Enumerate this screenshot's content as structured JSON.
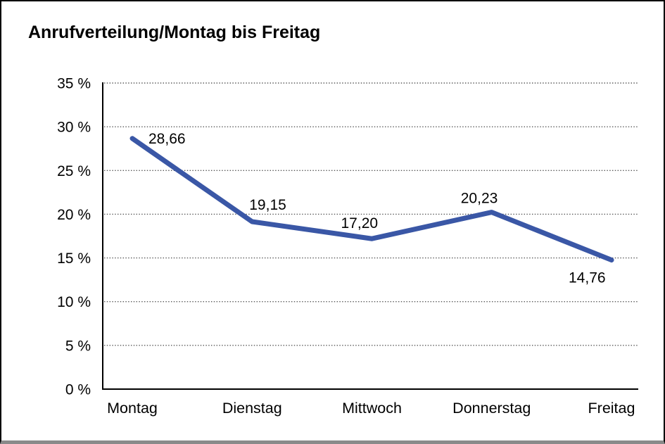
{
  "chart_data": {
    "type": "line",
    "title": "Anrufverteilung/Montag bis Freitag",
    "categories": [
      "Montag",
      "Dienstag",
      "Mittwoch",
      "Donnerstag",
      "Freitag"
    ],
    "values": [
      28.66,
      19.15,
      17.2,
      20.23,
      14.76
    ],
    "value_labels": [
      "28,66",
      "19,15",
      "17,20",
      "20,23",
      "14,76"
    ],
    "y_ticks": [
      {
        "value": 0,
        "label": "0 %"
      },
      {
        "value": 5,
        "label": "5 %"
      },
      {
        "value": 10,
        "label": "10 %"
      },
      {
        "value": 15,
        "label": "15 %"
      },
      {
        "value": 20,
        "label": "20 %"
      },
      {
        "value": 25,
        "label": "25 %"
      },
      {
        "value": 30,
        "label": "30 %"
      },
      {
        "value": 35,
        "label": "35 %"
      }
    ],
    "ylim": [
      0,
      35
    ],
    "xlabel": "",
    "ylabel": "",
    "grid": "horizontal-dotted",
    "legend_position": "none",
    "line_color": "#3a57a6",
    "grid_color": "#555555",
    "axis_color": "#000000",
    "text_color": "#000000"
  }
}
